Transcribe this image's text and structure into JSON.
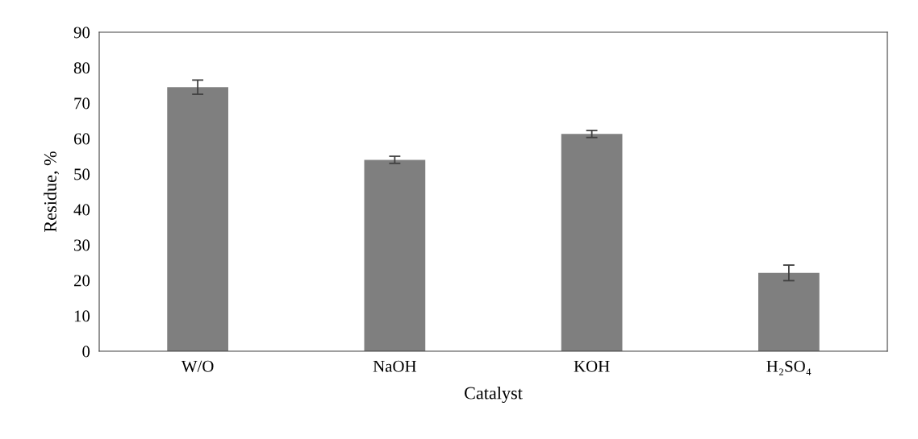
{
  "chart_data": {
    "type": "bar",
    "xlabel": "Catalyst",
    "ylabel": "Residue, %",
    "categories": [
      "W/O",
      "NaOH",
      "KOH",
      "H₂SO₄"
    ],
    "values": [
      74.5,
      54.0,
      61.3,
      22.1
    ],
    "errors": [
      2.0,
      1.0,
      1.0,
      2.2
    ],
    "color": "#7f7f7f",
    "ylim": [
      0,
      90
    ],
    "yticks": [
      0,
      10,
      20,
      30,
      40,
      50,
      60,
      70,
      80,
      90
    ],
    "grid": false
  }
}
